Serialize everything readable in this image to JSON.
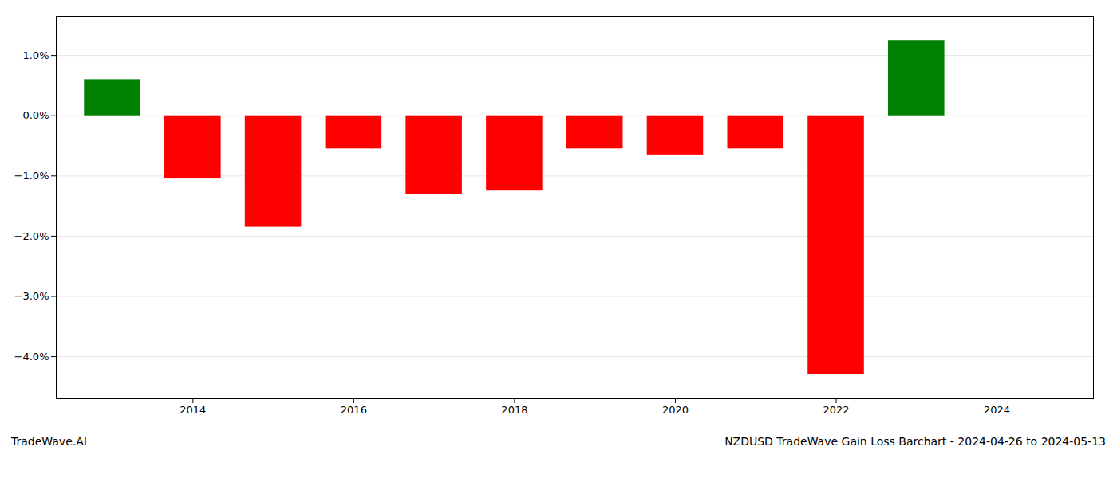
{
  "chart_data": {
    "type": "bar",
    "title": "NZDUSD TradeWave Gain Loss Barchart - 2024-04-26 to 2024-05-13",
    "annotations": [
      "TradeWave.AI"
    ],
    "x": [
      2013,
      2014,
      2015,
      2016,
      2017,
      2018,
      2019,
      2020,
      2021,
      2022,
      2023
    ],
    "values": [
      0.6,
      -1.05,
      -1.85,
      -0.55,
      -1.3,
      -1.25,
      -0.55,
      -0.65,
      -0.55,
      -4.3,
      1.25
    ],
    "colors": [
      "#008000",
      "#ff0000",
      "#ff0000",
      "#ff0000",
      "#ff0000",
      "#ff0000",
      "#ff0000",
      "#ff0000",
      "#ff0000",
      "#ff0000",
      "#008000"
    ],
    "xlim": [
      2012.3,
      2025.2
    ],
    "xticks": [
      2014,
      2016,
      2018,
      2020,
      2022,
      2024
    ],
    "ylim": [
      -4.7,
      1.65
    ],
    "yticks": [
      {
        "value": -4.0,
        "label": "−4.0%"
      },
      {
        "value": -3.0,
        "label": "−3.0%"
      },
      {
        "value": -2.0,
        "label": "−2.0%"
      },
      {
        "value": -1.0,
        "label": "−1.0%"
      },
      {
        "value": 0.0,
        "label": "0.0%"
      },
      {
        "value": 1.0,
        "label": "1.0%"
      }
    ],
    "grid": true
  }
}
